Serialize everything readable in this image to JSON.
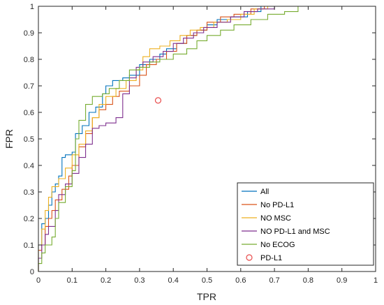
{
  "chart_data": {
    "type": "line",
    "title": "",
    "xlabel": "TPR",
    "ylabel": "FPR",
    "xlim": [
      0,
      1
    ],
    "ylim": [
      0,
      1
    ],
    "xticks": [
      "0",
      "0.1",
      "0.2",
      "0.3",
      "0.4",
      "0.5",
      "0.6",
      "0.7",
      "0.8",
      "0.9",
      "1"
    ],
    "yticks": [
      "0",
      "0.1",
      "0.2",
      "0.3",
      "0.4",
      "0.5",
      "0.6",
      "0.7",
      "0.8",
      "0.9",
      "1"
    ],
    "grid": false,
    "legend_position": "bottom-right",
    "series": [
      {
        "name": "All",
        "color": "#0072BD",
        "points": [
          [
            0,
            0
          ],
          [
            0,
            0.1
          ],
          [
            0.01,
            0.18
          ],
          [
            0.02,
            0.2
          ],
          [
            0.03,
            0.25
          ],
          [
            0.04,
            0.3
          ],
          [
            0.05,
            0.33
          ],
          [
            0.06,
            0.36
          ],
          [
            0.07,
            0.43
          ],
          [
            0.08,
            0.44
          ],
          [
            0.1,
            0.45
          ],
          [
            0.11,
            0.52
          ],
          [
            0.13,
            0.55
          ],
          [
            0.15,
            0.6
          ],
          [
            0.17,
            0.62
          ],
          [
            0.19,
            0.67
          ],
          [
            0.2,
            0.7
          ],
          [
            0.22,
            0.72
          ],
          [
            0.25,
            0.73
          ],
          [
            0.27,
            0.74
          ],
          [
            0.3,
            0.78
          ],
          [
            0.33,
            0.8
          ],
          [
            0.36,
            0.82
          ],
          [
            0.38,
            0.84
          ],
          [
            0.41,
            0.86
          ],
          [
            0.44,
            0.89
          ],
          [
            0.47,
            0.91
          ],
          [
            0.5,
            0.93
          ],
          [
            0.53,
            0.95
          ],
          [
            0.57,
            0.96
          ],
          [
            0.62,
            0.98
          ],
          [
            0.66,
            1
          ],
          [
            1,
            1
          ]
        ]
      },
      {
        "name": "No PD-L1",
        "color": "#D95319",
        "points": [
          [
            0,
            0
          ],
          [
            0,
            0.08
          ],
          [
            0.01,
            0.1
          ],
          [
            0.02,
            0.17
          ],
          [
            0.03,
            0.2
          ],
          [
            0.04,
            0.23
          ],
          [
            0.05,
            0.27
          ],
          [
            0.07,
            0.31
          ],
          [
            0.09,
            0.36
          ],
          [
            0.1,
            0.4
          ],
          [
            0.12,
            0.47
          ],
          [
            0.14,
            0.52
          ],
          [
            0.16,
            0.58
          ],
          [
            0.18,
            0.61
          ],
          [
            0.2,
            0.63
          ],
          [
            0.22,
            0.66
          ],
          [
            0.24,
            0.68
          ],
          [
            0.27,
            0.7
          ],
          [
            0.3,
            0.74
          ],
          [
            0.32,
            0.78
          ],
          [
            0.35,
            0.8
          ],
          [
            0.38,
            0.83
          ],
          [
            0.41,
            0.86
          ],
          [
            0.44,
            0.89
          ],
          [
            0.47,
            0.91
          ],
          [
            0.5,
            0.94
          ],
          [
            0.54,
            0.96
          ],
          [
            0.58,
            0.97
          ],
          [
            0.63,
            0.99
          ],
          [
            0.67,
            1
          ],
          [
            1,
            1
          ]
        ]
      },
      {
        "name": "NO MSC",
        "color": "#EDB120",
        "points": [
          [
            0,
            0
          ],
          [
            0,
            0.1
          ],
          [
            0.01,
            0.16
          ],
          [
            0.02,
            0.23
          ],
          [
            0.03,
            0.28
          ],
          [
            0.04,
            0.32
          ],
          [
            0.06,
            0.35
          ],
          [
            0.08,
            0.39
          ],
          [
            0.1,
            0.44
          ],
          [
            0.12,
            0.48
          ],
          [
            0.14,
            0.53
          ],
          [
            0.16,
            0.58
          ],
          [
            0.18,
            0.63
          ],
          [
            0.2,
            0.66
          ],
          [
            0.23,
            0.69
          ],
          [
            0.26,
            0.72
          ],
          [
            0.29,
            0.76
          ],
          [
            0.31,
            0.81
          ],
          [
            0.33,
            0.84
          ],
          [
            0.36,
            0.85
          ],
          [
            0.39,
            0.87
          ],
          [
            0.42,
            0.89
          ],
          [
            0.45,
            0.91
          ],
          [
            0.48,
            0.92
          ],
          [
            0.52,
            0.94
          ],
          [
            0.56,
            0.95
          ],
          [
            0.6,
            0.97
          ],
          [
            0.64,
            0.99
          ],
          [
            0.68,
            1
          ],
          [
            1,
            1
          ]
        ]
      },
      {
        "name": "NO PD-L1 and MSC",
        "color": "#7E2F8E",
        "points": [
          [
            0,
            0
          ],
          [
            0,
            0.05
          ],
          [
            0.01,
            0.1
          ],
          [
            0.02,
            0.14
          ],
          [
            0.03,
            0.17
          ],
          [
            0.05,
            0.23
          ],
          [
            0.06,
            0.29
          ],
          [
            0.08,
            0.33
          ],
          [
            0.1,
            0.37
          ],
          [
            0.12,
            0.43
          ],
          [
            0.14,
            0.48
          ],
          [
            0.16,
            0.54
          ],
          [
            0.18,
            0.55
          ],
          [
            0.2,
            0.56
          ],
          [
            0.23,
            0.58
          ],
          [
            0.25,
            0.67
          ],
          [
            0.27,
            0.73
          ],
          [
            0.29,
            0.77
          ],
          [
            0.31,
            0.79
          ],
          [
            0.34,
            0.81
          ],
          [
            0.37,
            0.83
          ],
          [
            0.4,
            0.86
          ],
          [
            0.43,
            0.88
          ],
          [
            0.46,
            0.9
          ],
          [
            0.49,
            0.92
          ],
          [
            0.53,
            0.94
          ],
          [
            0.57,
            0.96
          ],
          [
            0.61,
            0.98
          ],
          [
            0.65,
            0.99
          ],
          [
            0.7,
            1
          ],
          [
            1,
            1
          ]
        ]
      },
      {
        "name": "No ECOG",
        "color": "#77AC30",
        "points": [
          [
            0,
            0
          ],
          [
            0,
            0.03
          ],
          [
            0.01,
            0.07
          ],
          [
            0.02,
            0.1
          ],
          [
            0.04,
            0.13
          ],
          [
            0.05,
            0.2
          ],
          [
            0.06,
            0.26
          ],
          [
            0.08,
            0.32
          ],
          [
            0.1,
            0.38
          ],
          [
            0.11,
            0.5
          ],
          [
            0.12,
            0.57
          ],
          [
            0.14,
            0.63
          ],
          [
            0.16,
            0.66
          ],
          [
            0.19,
            0.67
          ],
          [
            0.21,
            0.69
          ],
          [
            0.24,
            0.72
          ],
          [
            0.27,
            0.76
          ],
          [
            0.3,
            0.77
          ],
          [
            0.33,
            0.79
          ],
          [
            0.36,
            0.8
          ],
          [
            0.4,
            0.82
          ],
          [
            0.44,
            0.84
          ],
          [
            0.47,
            0.87
          ],
          [
            0.5,
            0.89
          ],
          [
            0.54,
            0.91
          ],
          [
            0.58,
            0.93
          ],
          [
            0.63,
            0.95
          ],
          [
            0.68,
            0.97
          ],
          [
            0.73,
            0.98
          ],
          [
            0.77,
            1
          ],
          [
            1,
            1
          ]
        ]
      }
    ],
    "markers": [
      {
        "name": "PD-L1",
        "color": "#E84A4A",
        "shape": "circle",
        "x": 0.355,
        "y": 0.645
      }
    ]
  }
}
